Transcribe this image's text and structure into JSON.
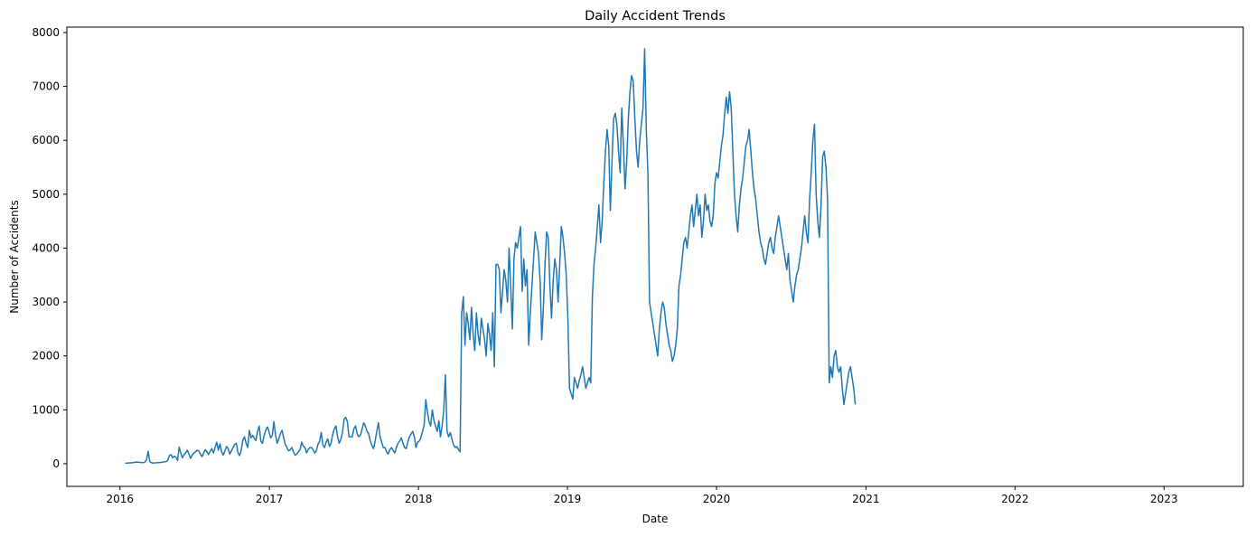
{
  "chart_data": {
    "type": "line",
    "title": "Daily Accident Trends",
    "xlabel": "Date",
    "ylabel": "Number of Accidents",
    "xlim": [
      "2015-08-24",
      "2023-07-14"
    ],
    "ylim": [
      -420,
      8100
    ],
    "x_ticks": [
      "2016",
      "2017",
      "2018",
      "2019",
      "2020",
      "2021",
      "2022",
      "2023"
    ],
    "y_ticks": [
      0,
      1000,
      2000,
      3000,
      4000,
      5000,
      6000,
      7000,
      8000
    ],
    "grid": false,
    "legend": "none",
    "line_color": "#1f77b4",
    "series": [
      {
        "x_start": "2016-01-14",
        "step_days": 4,
        "note_values_unit": "accidents per day",
        "values": [
          10,
          12,
          14,
          15,
          18,
          22,
          26,
          30,
          28,
          25,
          22,
          20,
          30,
          70,
          230,
          40,
          20,
          12,
          15,
          18,
          20,
          22,
          25,
          30,
          35,
          40,
          60,
          150,
          170,
          110,
          140,
          120,
          60,
          310,
          200,
          110,
          170,
          200,
          250,
          180,
          100,
          160,
          200,
          220,
          250,
          240,
          180,
          130,
          200,
          260,
          220,
          170,
          230,
          280,
          200,
          300,
          400,
          250,
          370,
          220,
          160,
          240,
          320,
          280,
          180,
          240,
          300,
          360,
          380,
          200,
          150,
          250,
          440,
          500,
          380,
          300,
          620,
          480,
          530,
          470,
          430,
          600,
          700,
          420,
          380,
          520,
          620,
          680,
          600,
          480,
          520,
          780,
          540,
          380,
          460,
          560,
          620,
          480,
          360,
          300,
          240,
          260,
          300,
          220,
          160,
          180,
          220,
          260,
          400,
          330,
          300,
          200,
          260,
          300,
          300,
          260,
          200,
          240,
          360,
          420,
          580,
          350,
          300,
          400,
          460,
          320,
          380,
          540,
          650,
          700,
          500,
          380,
          450,
          580,
          830,
          860,
          780,
          500,
          500,
          500,
          650,
          700,
          550,
          500,
          530,
          640,
          760,
          700,
          600,
          560,
          420,
          340,
          280,
          420,
          600,
          760,
          500,
          400,
          300,
          300,
          220,
          180,
          260,
          300,
          250,
          200,
          300,
          380,
          420,
          480,
          380,
          300,
          280,
          400,
          500,
          550,
          600,
          500,
          300,
          400,
          420,
          480,
          600,
          720,
          1190,
          960,
          780,
          700,
          1000,
          800,
          700,
          600,
          800,
          500,
          700,
          1000,
          1650,
          600,
          500,
          580,
          460,
          350,
          300,
          320,
          260,
          220,
          2800,
          3100,
          2200,
          2800,
          2600,
          2300,
          2900,
          2400,
          2100,
          2800,
          2400,
          2200,
          2700,
          2500,
          2300,
          2000,
          2600,
          2400,
          2100,
          2800,
          1800,
          3700,
          3700,
          3600,
          2800,
          3200,
          3600,
          3400,
          3000,
          4000,
          3300,
          2500,
          3800,
          4100,
          4000,
          4200,
          4400,
          3200,
          3800,
          3300,
          3600,
          2200,
          2800,
          3300,
          3800,
          4300,
          4100,
          3900,
          3400,
          2300,
          2900,
          3700,
          4300,
          4200,
          3300,
          2700,
          3400,
          3800,
          3600,
          3000,
          3700,
          4400,
          4200,
          3900,
          3500,
          2700,
          1400,
          1300,
          1200,
          1600,
          1500,
          1400,
          1550,
          1650,
          1800,
          1600,
          1400,
          1500,
          1600,
          1500,
          3100,
          3700,
          4000,
          4400,
          4800,
          4100,
          4500,
          5200,
          5800,
          6200,
          5900,
          4700,
          5600,
          6400,
          6500,
          6300,
          5800,
          5400,
          6600,
          5900,
          5100,
          5600,
          6400,
          6900,
          7200,
          7100,
          6400,
          5800,
          5500,
          6000,
          6300,
          6600,
          7700,
          6200,
          5400,
          3000,
          2800,
          2600,
          2400,
          2200,
          2000,
          2500,
          2800,
          3000,
          2900,
          2600,
          2400,
          2200,
          2100,
          1900,
          2000,
          2200,
          2500,
          3300,
          3500,
          3800,
          4100,
          4200,
          4000,
          4300,
          4600,
          4800,
          4400,
          4700,
          5000,
          4600,
          4800,
          4200,
          4500,
          5000,
          4700,
          4800,
          4500,
          4400,
          4600,
          5200,
          5400,
          5300,
          5600,
          5900,
          6100,
          6500,
          6800,
          6500,
          6900,
          6600,
          5800,
          5000,
          4600,
          4300,
          4800,
          5100,
          5300,
          5600,
          5900,
          6000,
          6200,
          5800,
          5400,
          5100,
          4900,
          4600,
          4300,
          4100,
          4000,
          3800,
          3700,
          3900,
          4100,
          4200,
          4000,
          3900,
          4200,
          4400,
          4600,
          4400,
          4200,
          4000,
          3800,
          3600,
          3900,
          3400,
          3200,
          3000,
          3300,
          3500,
          3600,
          3800,
          4000,
          4300,
          4600,
          4300,
          4100,
          4900,
          5400,
          6000,
          6300,
          5000,
          4500,
          4200,
          4800,
          5700,
          5800,
          5500,
          4900,
          1500,
          1800,
          1600,
          2000,
          2100,
          1800,
          1700,
          1800,
          1400,
          1100,
          1300,
          1500,
          1700,
          1800,
          1600,
          1400,
          1100
        ]
      }
    ]
  }
}
